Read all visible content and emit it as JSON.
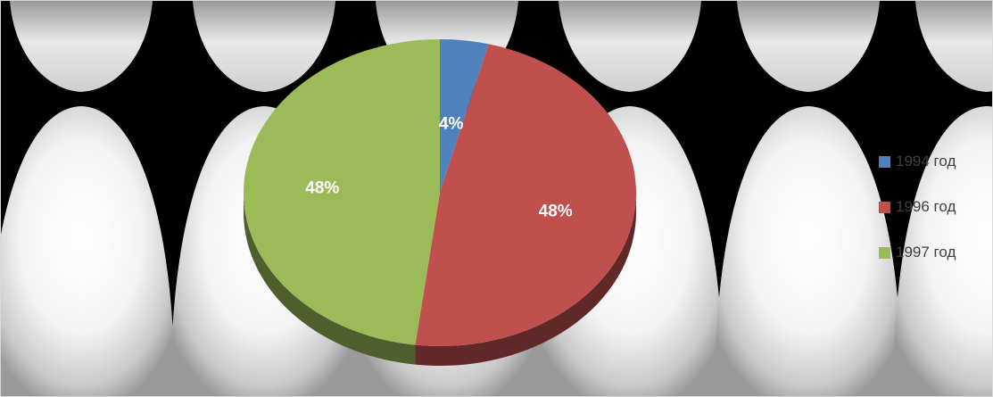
{
  "chart_data": {
    "type": "pie",
    "title": "",
    "categories": [
      "1994 год",
      "1996 год",
      "1997 год"
    ],
    "values": [
      4,
      48,
      48
    ],
    "value_labels": [
      "4%",
      "48%",
      "48%"
    ],
    "colors": [
      "#4f81bd",
      "#c0504d",
      "#9bbb59"
    ],
    "legend_position": "right",
    "style": "3d"
  },
  "legend": {
    "items": [
      {
        "label": "1994 год",
        "color": "#4f81bd"
      },
      {
        "label": "1996 год",
        "color": "#c0504d"
      },
      {
        "label": "1997 год",
        "color": "#9bbb59"
      }
    ]
  }
}
